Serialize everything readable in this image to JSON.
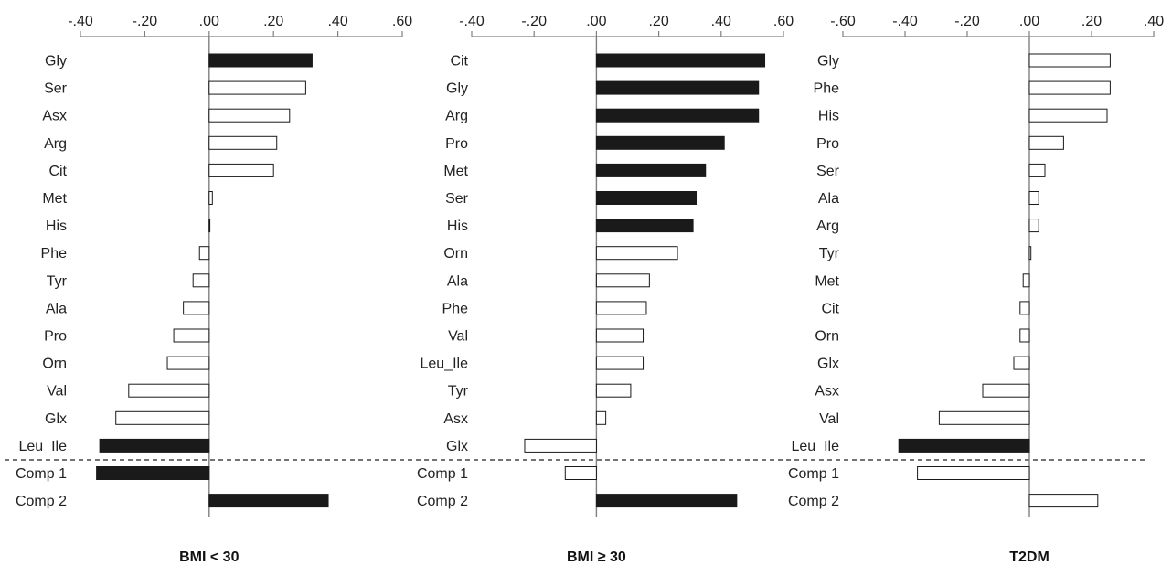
{
  "chart_data": [
    {
      "type": "bar",
      "orientation": "horizontal",
      "title": "BMI < 30",
      "xlim": [
        -0.4,
        0.6
      ],
      "ticks": [
        -0.4,
        -0.2,
        0.0,
        0.2,
        0.4,
        0.6
      ],
      "tick_labels": [
        "-.40",
        "-.20",
        ".00",
        ".20",
        ".40",
        ".60"
      ],
      "categories": [
        "Gly",
        "Ser",
        "Asx",
        "Arg",
        "Cit",
        "Met",
        "His",
        "Phe",
        "Tyr",
        "Ala",
        "Pro",
        "Orn",
        "Val",
        "Glx",
        "Leu_Ile",
        "Comp 1",
        "Comp 2"
      ],
      "values": [
        0.32,
        0.3,
        0.25,
        0.21,
        0.2,
        0.01,
        0.0,
        -0.03,
        -0.05,
        -0.08,
        -0.11,
        -0.13,
        -0.25,
        -0.29,
        -0.34,
        -0.35,
        0.37
      ],
      "significant": [
        true,
        false,
        false,
        false,
        false,
        false,
        false,
        false,
        false,
        false,
        false,
        false,
        false,
        false,
        true,
        true,
        true
      ]
    },
    {
      "type": "bar",
      "orientation": "horizontal",
      "title": "BMI ≥ 30",
      "xlim": [
        -0.4,
        0.6
      ],
      "ticks": [
        -0.4,
        -0.2,
        0.0,
        0.2,
        0.4,
        0.6
      ],
      "tick_labels": [
        "-.40",
        "-.20",
        ".00",
        ".20",
        ".40",
        ".60"
      ],
      "categories": [
        "Cit",
        "Gly",
        "Arg",
        "Pro",
        "Met",
        "Ser",
        "His",
        "Orn",
        "Ala",
        "Phe",
        "Val",
        "Leu_Ile",
        "Tyr",
        "Asx",
        "Glx",
        "Comp 1",
        "Comp 2"
      ],
      "values": [
        0.54,
        0.52,
        0.52,
        0.41,
        0.35,
        0.32,
        0.31,
        0.26,
        0.17,
        0.16,
        0.15,
        0.15,
        0.11,
        0.03,
        -0.23,
        -0.1,
        0.45
      ],
      "significant": [
        true,
        true,
        true,
        true,
        true,
        true,
        true,
        false,
        false,
        false,
        false,
        false,
        false,
        false,
        false,
        false,
        true
      ]
    },
    {
      "type": "bar",
      "orientation": "horizontal",
      "title": "T2DM",
      "xlim": [
        -0.6,
        0.4
      ],
      "ticks": [
        -0.6,
        -0.4,
        -0.2,
        0.0,
        0.2,
        0.4
      ],
      "tick_labels": [
        "-.60",
        "-.40",
        "-.20",
        ".00",
        ".20",
        ".40"
      ],
      "categories": [
        "Gly",
        "Phe",
        "His",
        "Pro",
        "Ser",
        "Ala",
        "Arg",
        "Tyr",
        "Met",
        "Cit",
        "Orn",
        "Glx",
        "Asx",
        "Val",
        "Leu_Ile",
        "Comp 1",
        "Comp 2"
      ],
      "values": [
        0.26,
        0.26,
        0.25,
        0.11,
        0.05,
        0.03,
        0.03,
        0.005,
        -0.02,
        -0.03,
        -0.03,
        -0.05,
        -0.15,
        -0.29,
        -0.42,
        -0.36,
        0.22
      ],
      "significant": [
        false,
        false,
        false,
        false,
        false,
        false,
        false,
        false,
        false,
        false,
        false,
        false,
        false,
        false,
        true,
        false,
        false
      ]
    }
  ],
  "colors": {
    "significant": "#1a1a1a",
    "nonsignificant": "#ffffff",
    "outline": "#1a1a1a",
    "axis": "#808080"
  }
}
